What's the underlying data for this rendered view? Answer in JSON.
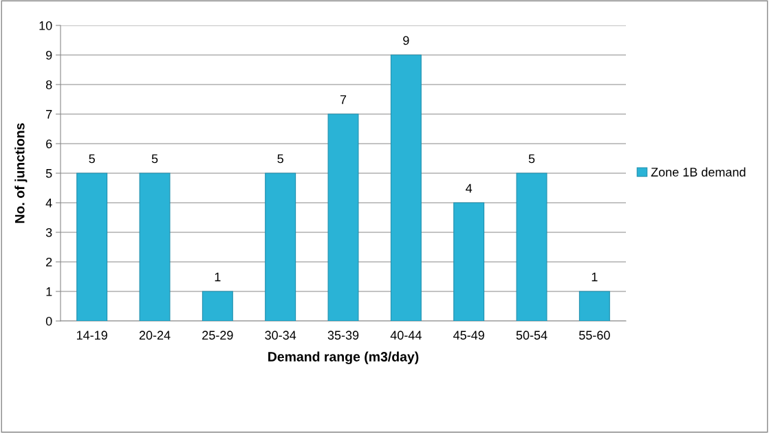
{
  "chart_data": {
    "type": "bar",
    "xlabel": "Demand range (m3/day)",
    "ylabel": "No. of junctions",
    "categories": [
      "14-19",
      "20-24",
      "25-29",
      "30-34",
      "35-39",
      "40-44",
      "45-49",
      "50-54",
      "55-60"
    ],
    "series": [
      {
        "name": "Zone 1B demand",
        "color": "#2ab3d6",
        "values": [
          5,
          5,
          1,
          5,
          7,
          9,
          4,
          5,
          1
        ]
      }
    ],
    "ylim": [
      0,
      10
    ],
    "yticks": [
      0,
      1,
      2,
      3,
      4,
      5,
      6,
      7,
      8,
      9,
      10
    ],
    "grid": "y",
    "legend": "right",
    "data_labels": true
  }
}
